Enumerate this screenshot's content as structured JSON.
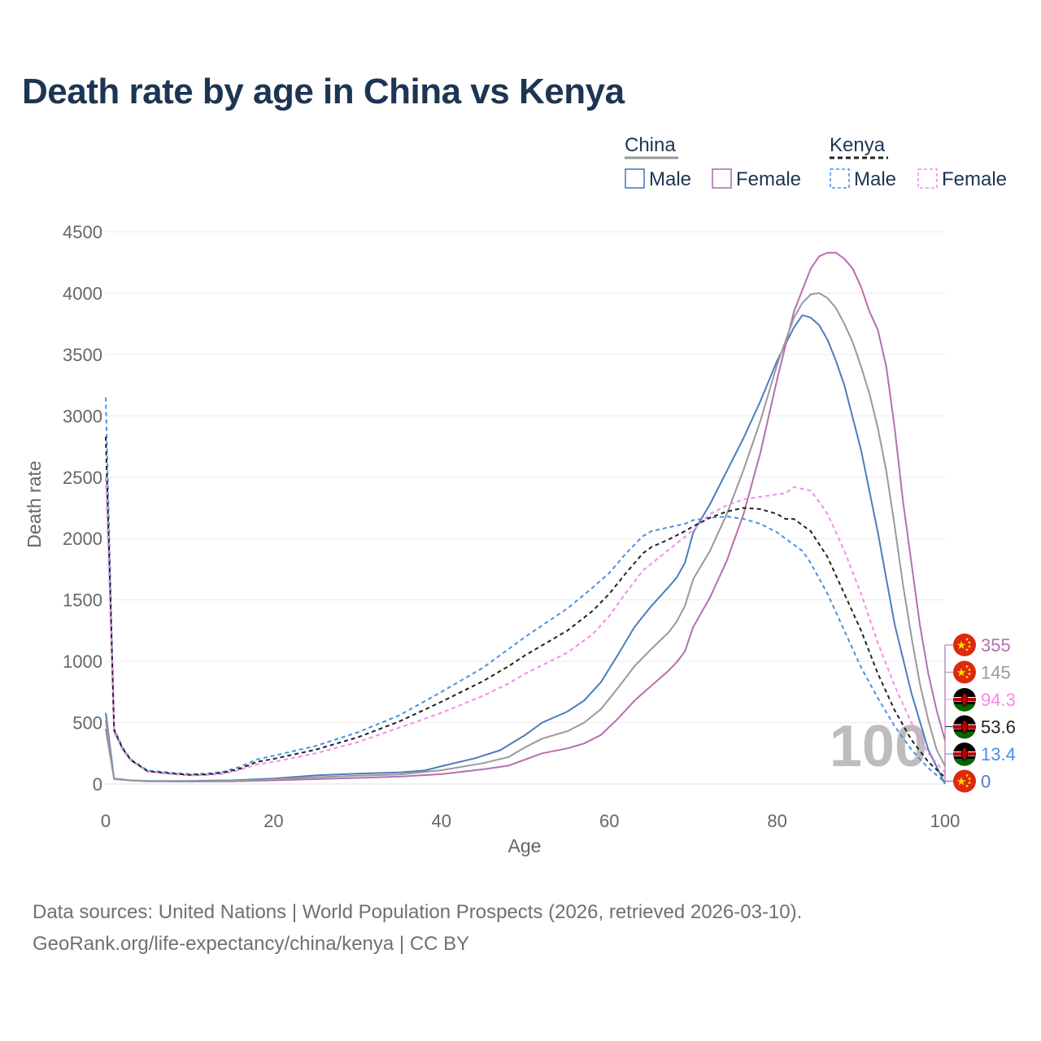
{
  "title": "Death rate by age in China vs Kenya",
  "footer": {
    "source": "Data sources: United Nations | World Population Prospects (2026, retrieved 2026-03-10).",
    "credit": "GeoRank.org/life-expectancy/china/kenya | CC BY"
  },
  "legend": {
    "groups": [
      {
        "name": "China",
        "style": "solid",
        "color": "#999999",
        "items": [
          {
            "label": "Male",
            "color": "#4a7ebb"
          },
          {
            "label": "Female",
            "color": "#b56fb0"
          }
        ]
      },
      {
        "name": "Kenya",
        "style": "dashed",
        "color": "#222222",
        "items": [
          {
            "label": "Male",
            "color": "#4692e6"
          },
          {
            "label": "Female",
            "color": "#f78ae8"
          }
        ]
      }
    ]
  },
  "watermark": "100",
  "end_labels": [
    {
      "text": "355",
      "color": "#b56fb0",
      "flag": "china"
    },
    {
      "text": "145",
      "color": "#999999",
      "flag": "china"
    },
    {
      "text": "94.3",
      "color": "#f78ae8",
      "flag": "kenya"
    },
    {
      "text": "53.6",
      "color": "#222222",
      "flag": "kenya"
    },
    {
      "text": "13.4",
      "color": "#4692e6",
      "flag": "kenya"
    },
    {
      "text": "0",
      "color": "#4a7ebb",
      "flag": "china"
    }
  ],
  "chart_data": {
    "type": "line",
    "title": "Death rate by age in China vs Kenya",
    "xlabel": "Age",
    "ylabel": "Death rate",
    "xlim": [
      0,
      100
    ],
    "ylim": [
      0,
      4500
    ],
    "xticks": [
      0,
      20,
      40,
      60,
      80,
      100
    ],
    "yticks": [
      0,
      500,
      1000,
      1500,
      2000,
      2500,
      3000,
      3500,
      4000,
      4500
    ],
    "grid": true,
    "series": [
      {
        "name": "China Male",
        "color": "#4a7ebb",
        "dash": false,
        "points": [
          [
            0,
            580
          ],
          [
            1,
            45
          ],
          [
            3,
            30
          ],
          [
            5,
            25
          ],
          [
            10,
            25
          ],
          [
            15,
            30
          ],
          [
            20,
            45
          ],
          [
            25,
            70
          ],
          [
            30,
            85
          ],
          [
            35,
            95
          ],
          [
            38,
            110
          ],
          [
            40,
            145
          ],
          [
            44,
            210
          ],
          [
            47,
            275
          ],
          [
            50,
            400
          ],
          [
            52,
            500
          ],
          [
            55,
            590
          ],
          [
            57,
            680
          ],
          [
            59,
            830
          ],
          [
            61,
            1050
          ],
          [
            63,
            1280
          ],
          [
            65,
            1450
          ],
          [
            67,
            1600
          ],
          [
            68,
            1680
          ],
          [
            69,
            1800
          ],
          [
            70,
            2050
          ],
          [
            72,
            2280
          ],
          [
            74,
            2550
          ],
          [
            76,
            2820
          ],
          [
            78,
            3120
          ],
          [
            80,
            3450
          ],
          [
            82,
            3720
          ],
          [
            83,
            3820
          ],
          [
            84,
            3800
          ],
          [
            85,
            3740
          ],
          [
            86,
            3620
          ],
          [
            87,
            3450
          ],
          [
            88,
            3250
          ],
          [
            90,
            2720
          ],
          [
            92,
            2050
          ],
          [
            94,
            1300
          ],
          [
            96,
            740
          ],
          [
            98,
            280
          ],
          [
            100,
            0
          ]
        ]
      },
      {
        "name": "China Female",
        "color": "#b56fb0",
        "dash": false,
        "points": [
          [
            0,
            450
          ],
          [
            1,
            40
          ],
          [
            3,
            28
          ],
          [
            5,
            22
          ],
          [
            10,
            20
          ],
          [
            15,
            22
          ],
          [
            20,
            30
          ],
          [
            25,
            40
          ],
          [
            30,
            50
          ],
          [
            35,
            60
          ],
          [
            40,
            80
          ],
          [
            45,
            120
          ],
          [
            48,
            150
          ],
          [
            50,
            200
          ],
          [
            52,
            250
          ],
          [
            55,
            290
          ],
          [
            57,
            330
          ],
          [
            59,
            400
          ],
          [
            61,
            530
          ],
          [
            63,
            680
          ],
          [
            65,
            800
          ],
          [
            67,
            920
          ],
          [
            68,
            990
          ],
          [
            69,
            1080
          ],
          [
            70,
            1280
          ],
          [
            72,
            1520
          ],
          [
            74,
            1820
          ],
          [
            76,
            2200
          ],
          [
            78,
            2700
          ],
          [
            80,
            3300
          ],
          [
            82,
            3850
          ],
          [
            84,
            4200
          ],
          [
            85,
            4300
          ],
          [
            86,
            4330
          ],
          [
            87,
            4330
          ],
          [
            88,
            4280
          ],
          [
            89,
            4200
          ],
          [
            90,
            4050
          ],
          [
            91,
            3850
          ],
          [
            92,
            3700
          ],
          [
            93,
            3400
          ],
          [
            94,
            2900
          ],
          [
            95,
            2300
          ],
          [
            96,
            1800
          ],
          [
            97,
            1300
          ],
          [
            98,
            900
          ],
          [
            99,
            600
          ],
          [
            100,
            355
          ]
        ]
      },
      {
        "name": "China Total",
        "color": "#999999",
        "dash": false,
        "points": [
          [
            0,
            520
          ],
          [
            1,
            42
          ],
          [
            3,
            29
          ],
          [
            5,
            24
          ],
          [
            10,
            22
          ],
          [
            15,
            26
          ],
          [
            20,
            38
          ],
          [
            25,
            55
          ],
          [
            30,
            68
          ],
          [
            35,
            78
          ],
          [
            40,
            112
          ],
          [
            45,
            170
          ],
          [
            48,
            220
          ],
          [
            50,
            300
          ],
          [
            52,
            370
          ],
          [
            55,
            430
          ],
          [
            57,
            500
          ],
          [
            59,
            610
          ],
          [
            61,
            780
          ],
          [
            63,
            960
          ],
          [
            65,
            1100
          ],
          [
            67,
            1230
          ],
          [
            68,
            1320
          ],
          [
            69,
            1450
          ],
          [
            70,
            1670
          ],
          [
            72,
            1900
          ],
          [
            74,
            2200
          ],
          [
            76,
            2560
          ],
          [
            78,
            2960
          ],
          [
            80,
            3420
          ],
          [
            82,
            3800
          ],
          [
            83,
            3920
          ],
          [
            84,
            3990
          ],
          [
            85,
            4000
          ],
          [
            86,
            3960
          ],
          [
            87,
            3880
          ],
          [
            88,
            3750
          ],
          [
            89,
            3600
          ],
          [
            90,
            3400
          ],
          [
            91,
            3180
          ],
          [
            92,
            2900
          ],
          [
            93,
            2550
          ],
          [
            94,
            2100
          ],
          [
            95,
            1620
          ],
          [
            96,
            1200
          ],
          [
            97,
            820
          ],
          [
            98,
            520
          ],
          [
            99,
            280
          ],
          [
            100,
            145
          ]
        ]
      },
      {
        "name": "Kenya Male",
        "color": "#4692e6",
        "dash": true,
        "points": [
          [
            0,
            3150
          ],
          [
            0.5,
            1800
          ],
          [
            1,
            450
          ],
          [
            2,
            300
          ],
          [
            3,
            200
          ],
          [
            5,
            110
          ],
          [
            8,
            90
          ],
          [
            10,
            80
          ],
          [
            12,
            85
          ],
          [
            14,
            100
          ],
          [
            16,
            140
          ],
          [
            18,
            200
          ],
          [
            20,
            230
          ],
          [
            25,
            310
          ],
          [
            30,
            420
          ],
          [
            35,
            560
          ],
          [
            40,
            750
          ],
          [
            45,
            950
          ],
          [
            48,
            1100
          ],
          [
            50,
            1200
          ],
          [
            55,
            1430
          ],
          [
            58,
            1600
          ],
          [
            60,
            1720
          ],
          [
            62,
            1880
          ],
          [
            64,
            2020
          ],
          [
            65,
            2060
          ],
          [
            67,
            2090
          ],
          [
            69,
            2120
          ],
          [
            70,
            2150
          ],
          [
            72,
            2170
          ],
          [
            74,
            2180
          ],
          [
            76,
            2160
          ],
          [
            78,
            2120
          ],
          [
            80,
            2050
          ],
          [
            82,
            1950
          ],
          [
            83,
            1900
          ],
          [
            84,
            1800
          ],
          [
            86,
            1550
          ],
          [
            88,
            1250
          ],
          [
            90,
            950
          ],
          [
            92,
            700
          ],
          [
            94,
            470
          ],
          [
            96,
            280
          ],
          [
            98,
            130
          ],
          [
            100,
            13.4
          ]
        ]
      },
      {
        "name": "Kenya Female",
        "color": "#f78ae8",
        "dash": true,
        "points": [
          [
            0,
            2500
          ],
          [
            0.5,
            1500
          ],
          [
            1,
            420
          ],
          [
            2,
            280
          ],
          [
            3,
            190
          ],
          [
            5,
            100
          ],
          [
            8,
            80
          ],
          [
            10,
            70
          ],
          [
            12,
            72
          ],
          [
            14,
            85
          ],
          [
            16,
            115
          ],
          [
            18,
            160
          ],
          [
            20,
            180
          ],
          [
            25,
            250
          ],
          [
            30,
            340
          ],
          [
            35,
            460
          ],
          [
            40,
            580
          ],
          [
            45,
            720
          ],
          [
            48,
            820
          ],
          [
            50,
            900
          ],
          [
            55,
            1070
          ],
          [
            58,
            1220
          ],
          [
            60,
            1370
          ],
          [
            62,
            1560
          ],
          [
            64,
            1740
          ],
          [
            66,
            1850
          ],
          [
            68,
            1960
          ],
          [
            70,
            2070
          ],
          [
            72,
            2200
          ],
          [
            74,
            2270
          ],
          [
            76,
            2320
          ],
          [
            78,
            2340
          ],
          [
            79,
            2350
          ],
          [
            80,
            2360
          ],
          [
            81,
            2370
          ],
          [
            82,
            2420
          ],
          [
            84,
            2390
          ],
          [
            85,
            2300
          ],
          [
            86,
            2200
          ],
          [
            88,
            1900
          ],
          [
            90,
            1550
          ],
          [
            92,
            1150
          ],
          [
            94,
            800
          ],
          [
            96,
            500
          ],
          [
            98,
            250
          ],
          [
            100,
            94.3
          ]
        ]
      },
      {
        "name": "Kenya Total",
        "color": "#222222",
        "dash": true,
        "points": [
          [
            0,
            2830
          ],
          [
            0.5,
            1650
          ],
          [
            1,
            440
          ],
          [
            2,
            290
          ],
          [
            3,
            195
          ],
          [
            5,
            105
          ],
          [
            8,
            85
          ],
          [
            10,
            75
          ],
          [
            12,
            78
          ],
          [
            14,
            92
          ],
          [
            16,
            125
          ],
          [
            18,
            180
          ],
          [
            20,
            205
          ],
          [
            25,
            280
          ],
          [
            30,
            380
          ],
          [
            35,
            510
          ],
          [
            40,
            670
          ],
          [
            45,
            840
          ],
          [
            48,
            960
          ],
          [
            50,
            1050
          ],
          [
            55,
            1250
          ],
          [
            58,
            1410
          ],
          [
            60,
            1550
          ],
          [
            62,
            1720
          ],
          [
            64,
            1880
          ],
          [
            65,
            1930
          ],
          [
            67,
            1990
          ],
          [
            69,
            2060
          ],
          [
            70,
            2100
          ],
          [
            72,
            2170
          ],
          [
            74,
            2220
          ],
          [
            76,
            2250
          ],
          [
            78,
            2240
          ],
          [
            80,
            2200
          ],
          [
            81,
            2160
          ],
          [
            82,
            2160
          ],
          [
            84,
            2060
          ],
          [
            86,
            1850
          ],
          [
            88,
            1550
          ],
          [
            90,
            1250
          ],
          [
            92,
            900
          ],
          [
            94,
            600
          ],
          [
            96,
            360
          ],
          [
            98,
            180
          ],
          [
            100,
            53.6
          ]
        ]
      }
    ]
  }
}
